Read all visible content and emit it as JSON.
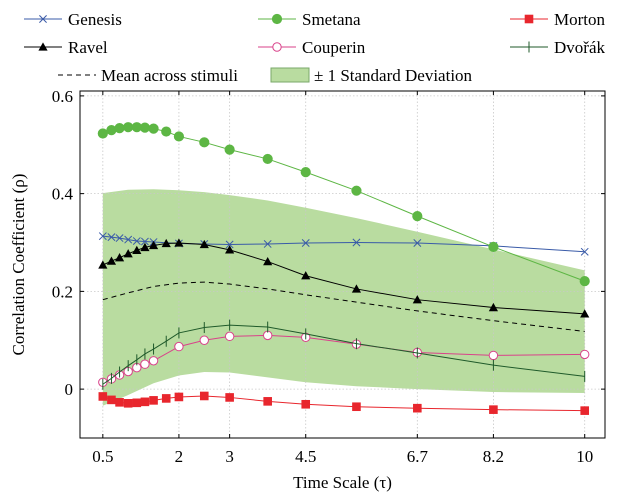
{
  "chart_data": {
    "type": "line",
    "xlabel": "Time Scale (τ)",
    "ylabel": "Correlation Coefficient (ρ)",
    "xticks": [
      0.5,
      2,
      3,
      4.5,
      6.7,
      8.2,
      10
    ],
    "xtick_labels": [
      "0.5",
      "2",
      "3",
      "4.5",
      "6.7",
      "8.2",
      "10"
    ],
    "yticks": [
      0,
      0.2,
      0.4,
      0.6
    ],
    "ytick_labels": [
      "0",
      "0.2",
      "0.4",
      "0.6"
    ],
    "xlim": [
      0.05,
      10.4
    ],
    "ylim": [
      -0.1,
      0.61
    ],
    "legend_position": "top",
    "series": [
      {
        "name": "Genesis",
        "color": "#3a5ba8",
        "marker": "x",
        "x": [
          0.5,
          0.67,
          0.83,
          1.0,
          1.17,
          1.33,
          1.5,
          2,
          2.5,
          3,
          3.75,
          4.5,
          5.5,
          6.7,
          8.2,
          10
        ],
        "y": [
          0.313,
          0.311,
          0.309,
          0.306,
          0.303,
          0.302,
          0.301,
          0.298,
          0.297,
          0.296,
          0.297,
          0.299,
          0.3,
          0.299,
          0.293,
          0.281
        ]
      },
      {
        "name": "Smetana",
        "color": "#5db644",
        "marker": "circle-filled",
        "x": [
          0.5,
          0.67,
          0.83,
          1.0,
          1.17,
          1.33,
          1.5,
          1.75,
          2,
          2.5,
          3,
          3.75,
          4.5,
          5.5,
          6.7,
          8.2,
          10
        ],
        "y": [
          0.523,
          0.53,
          0.534,
          0.536,
          0.536,
          0.535,
          0.533,
          0.527,
          0.517,
          0.505,
          0.49,
          0.471,
          0.444,
          0.406,
          0.354,
          0.291,
          0.221
        ]
      },
      {
        "name": "Morton",
        "color": "#e8262d",
        "marker": "square-filled",
        "x": [
          0.5,
          0.67,
          0.83,
          1.0,
          1.17,
          1.33,
          1.5,
          1.75,
          2,
          2.5,
          3,
          3.75,
          4.5,
          5.5,
          6.7,
          8.2,
          10
        ],
        "y": [
          -0.015,
          -0.022,
          -0.027,
          -0.029,
          -0.028,
          -0.026,
          -0.023,
          -0.019,
          -0.016,
          -0.014,
          -0.017,
          -0.025,
          -0.031,
          -0.036,
          -0.039,
          -0.042,
          -0.044
        ]
      },
      {
        "name": "Ravel",
        "color": "#000000",
        "marker": "triangle-filled",
        "x": [
          0.5,
          0.67,
          0.83,
          1.0,
          1.17,
          1.33,
          1.5,
          1.75,
          2,
          2.5,
          3,
          3.75,
          4.5,
          5.5,
          6.7,
          8.2,
          10
        ],
        "y": [
          0.254,
          0.262,
          0.269,
          0.277,
          0.284,
          0.29,
          0.294,
          0.298,
          0.299,
          0.296,
          0.285,
          0.261,
          0.232,
          0.205,
          0.183,
          0.167,
          0.154
        ]
      },
      {
        "name": "Couperin",
        "color": "#d9428a",
        "marker": "circle-open",
        "x": [
          0.5,
          0.67,
          0.83,
          1.0,
          1.17,
          1.33,
          1.5,
          2,
          2.5,
          3,
          3.75,
          4.5,
          5.5,
          6.7,
          8.2,
          10
        ],
        "y": [
          0.014,
          0.021,
          0.029,
          0.036,
          0.044,
          0.051,
          0.058,
          0.087,
          0.1,
          0.108,
          0.11,
          0.106,
          0.092,
          0.075,
          0.069,
          0.071
        ]
      },
      {
        "name": "Dvořák",
        "color": "#1f5a2a",
        "marker": "tick",
        "x": [
          0.5,
          0.67,
          0.83,
          1.0,
          1.17,
          1.33,
          1.5,
          1.75,
          2,
          2.5,
          3,
          3.75,
          4.5,
          5.5,
          6.7,
          8.2,
          10
        ],
        "y": [
          0.01,
          0.022,
          0.035,
          0.048,
          0.06,
          0.072,
          0.082,
          0.098,
          0.115,
          0.126,
          0.131,
          0.127,
          0.113,
          0.093,
          0.074,
          0.049,
          0.026
        ]
      }
    ],
    "mean": {
      "name": "Mean across stimuli",
      "style": "dashed",
      "color": "#000000",
      "x": [
        0.5,
        1.0,
        1.5,
        2,
        2.5,
        3,
        3.75,
        4.5,
        5.5,
        6.7,
        8.2,
        10
      ],
      "y": [
        0.183,
        0.197,
        0.21,
        0.217,
        0.219,
        0.215,
        0.205,
        0.193,
        0.178,
        0.16,
        0.14,
        0.118
      ]
    },
    "std_band": {
      "name": "± 1 Standard Deviation",
      "color": "#b9dca0",
      "x": [
        0.5,
        1.0,
        1.5,
        2,
        2.5,
        3,
        3.75,
        4.5,
        5.5,
        6.7,
        8.2,
        10
      ],
      "upper": [
        0.401,
        0.408,
        0.409,
        0.407,
        0.403,
        0.397,
        0.386,
        0.371,
        0.35,
        0.322,
        0.286,
        0.243
      ],
      "lower": [
        -0.034,
        -0.012,
        0.012,
        0.028,
        0.035,
        0.034,
        0.024,
        0.014,
        0.006,
        0.0,
        -0.006,
        -0.008
      ]
    }
  }
}
